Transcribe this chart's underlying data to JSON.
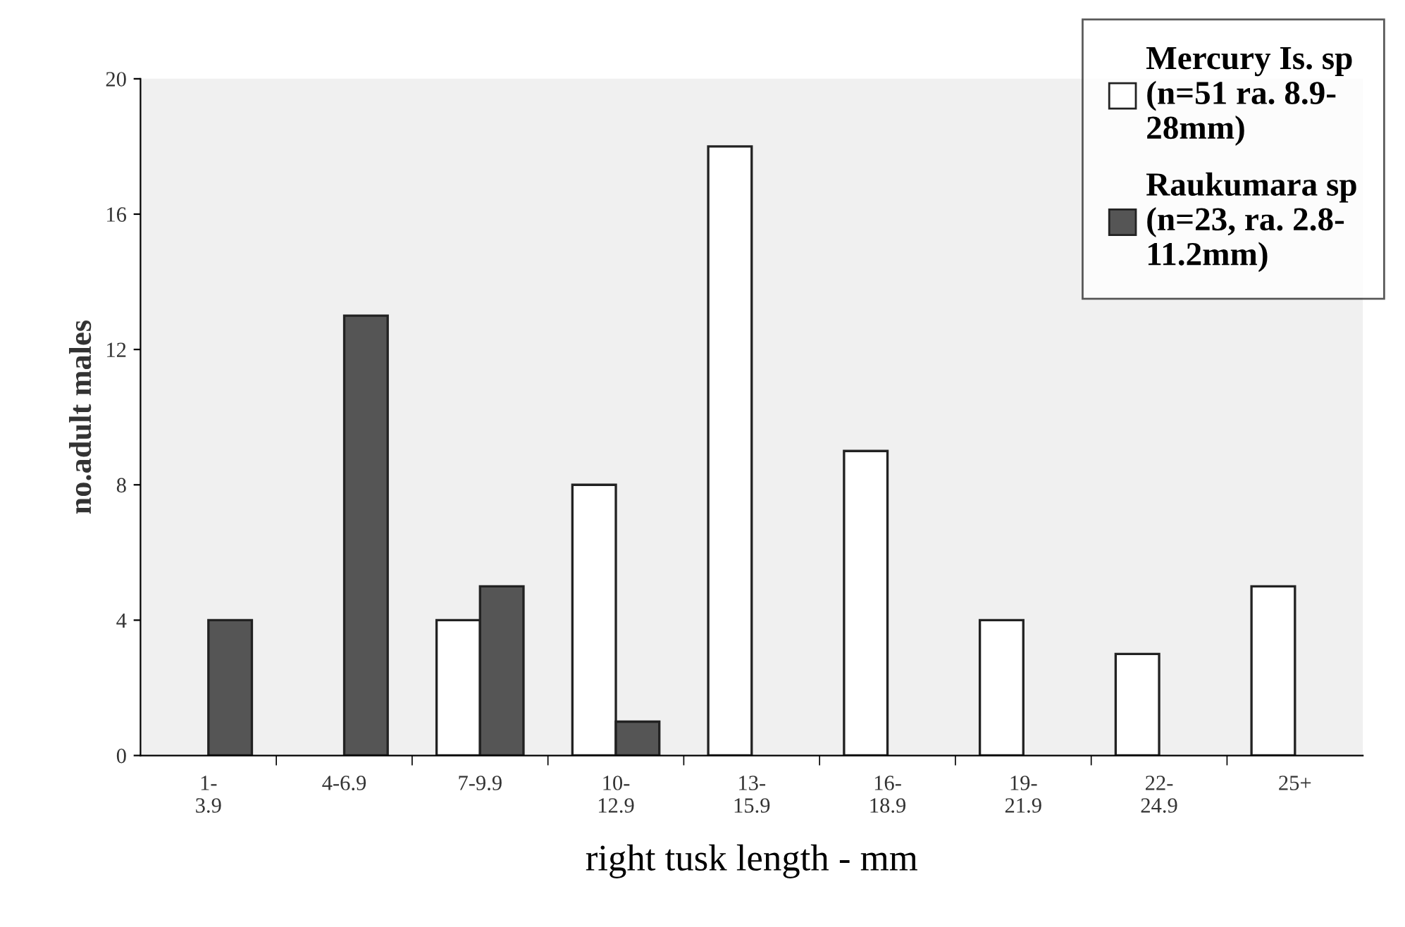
{
  "chart_data": {
    "type": "bar",
    "xlabel": "right tusk length - mm",
    "ylabel": "no.adult males",
    "categories": [
      "1-\n3.9",
      "4-6.9",
      "7-9.9",
      "10-\n12.9",
      "13-\n15.9",
      "16-\n18.9",
      "19-\n21.9",
      "22-\n24.9",
      "25+"
    ],
    "series": [
      {
        "name": "Mercury Is. sp\n(n=51 ra. 8.9-\n28mm)",
        "color": "#ffffff",
        "values": [
          null,
          null,
          4,
          8,
          18,
          9,
          4,
          3,
          5
        ]
      },
      {
        "name": "Raukumara sp\n(n=23, ra. 2.8-\n11.2mm)",
        "color": "#555555",
        "values": [
          4,
          13,
          5,
          1,
          null,
          null,
          null,
          null,
          null
        ]
      }
    ],
    "ylim": [
      0,
      20
    ],
    "yticks": [
      0,
      4,
      8,
      12,
      16,
      20
    ],
    "grid": false,
    "legend": "top right"
  }
}
